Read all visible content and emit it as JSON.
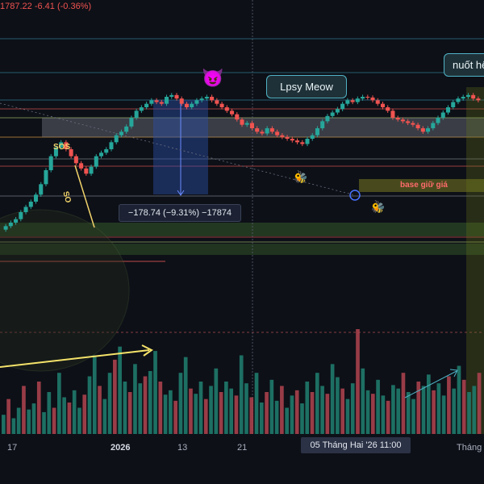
{
  "header": {
    "price_text": "1787.22 -6.41 (-0.36%)"
  },
  "annotations": {
    "sos": "SOS",
    "so": "SO",
    "bubble_1": "Lpsy Meow",
    "bubble_2": "nuốt hế",
    "measure": "−178.74 (−9.31%) −17874",
    "base": "base giữ giá",
    "devil_emoji": "😈",
    "bee_emoji": "🐝"
  },
  "x_axis": {
    "ticks": [
      "17",
      "2026",
      "13",
      "21",
      "Tháng"
    ],
    "crosshair_label": "05 Tháng Hai '26   11:00"
  },
  "colors": {
    "up": "#26a69a",
    "down": "#ef5350",
    "volume_up": "#1f7a6b",
    "volume_down": "#a8414c",
    "accent": "#4fb3c6"
  },
  "chart_data": {
    "type": "candlestick",
    "y_range": [
      1600,
      2050
    ],
    "x_count": 150,
    "closes": [
      1680,
      1690,
      1700,
      1720,
      1735,
      1750,
      1770,
      1800,
      1840,
      1880,
      1905,
      1920,
      1900,
      1880,
      1860,
      1845,
      1830,
      1850,
      1880,
      1890,
      1900,
      1920,
      1940,
      1950,
      1965,
      1990,
      2010,
      2020,
      2030,
      2040,
      2035,
      2030,
      2050,
      2055,
      2045,
      2030,
      2020,
      2030,
      2040,
      2045,
      2050,
      2040,
      2030,
      2020,
      2010,
      2000,
      1985,
      1970,
      1975,
      1960,
      1950,
      1945,
      1960,
      1950,
      1940,
      1935,
      1930,
      1925,
      1920,
      1915,
      1930,
      1940,
      1960,
      1980,
      1995,
      2005,
      2015,
      2030,
      2040,
      2035,
      2045,
      2050,
      2048,
      2040,
      2030,
      2020,
      2010,
      1990,
      1985,
      1980,
      1975,
      1970,
      1960,
      1950,
      1960,
      1975,
      1990,
      2005,
      2020,
      2035,
      2045,
      2050,
      2055,
      2045,
      2040
    ],
    "volume": [
      22,
      40,
      18,
      30,
      55,
      28,
      35,
      60,
      25,
      48,
      30,
      70,
      42,
      36,
      50,
      30,
      45,
      66,
      90,
      55,
      40,
      70,
      85,
      100,
      60,
      48,
      80,
      58,
      66,
      72,
      95,
      60,
      45,
      50,
      38,
      70,
      88,
      52,
      46,
      60,
      40,
      55,
      75,
      48,
      60,
      52,
      44,
      90,
      58,
      42,
      70,
      36,
      48,
      62,
      38,
      55,
      30,
      44,
      50,
      35,
      60,
      48,
      70,
      55,
      46,
      80,
      65,
      52,
      40,
      58,
      120,
      75,
      50,
      46,
      62,
      44,
      38,
      56,
      52,
      70,
      48,
      40,
      60,
      55,
      68,
      50,
      58,
      44,
      66,
      52,
      78,
      62,
      48,
      55,
      70
    ]
  }
}
